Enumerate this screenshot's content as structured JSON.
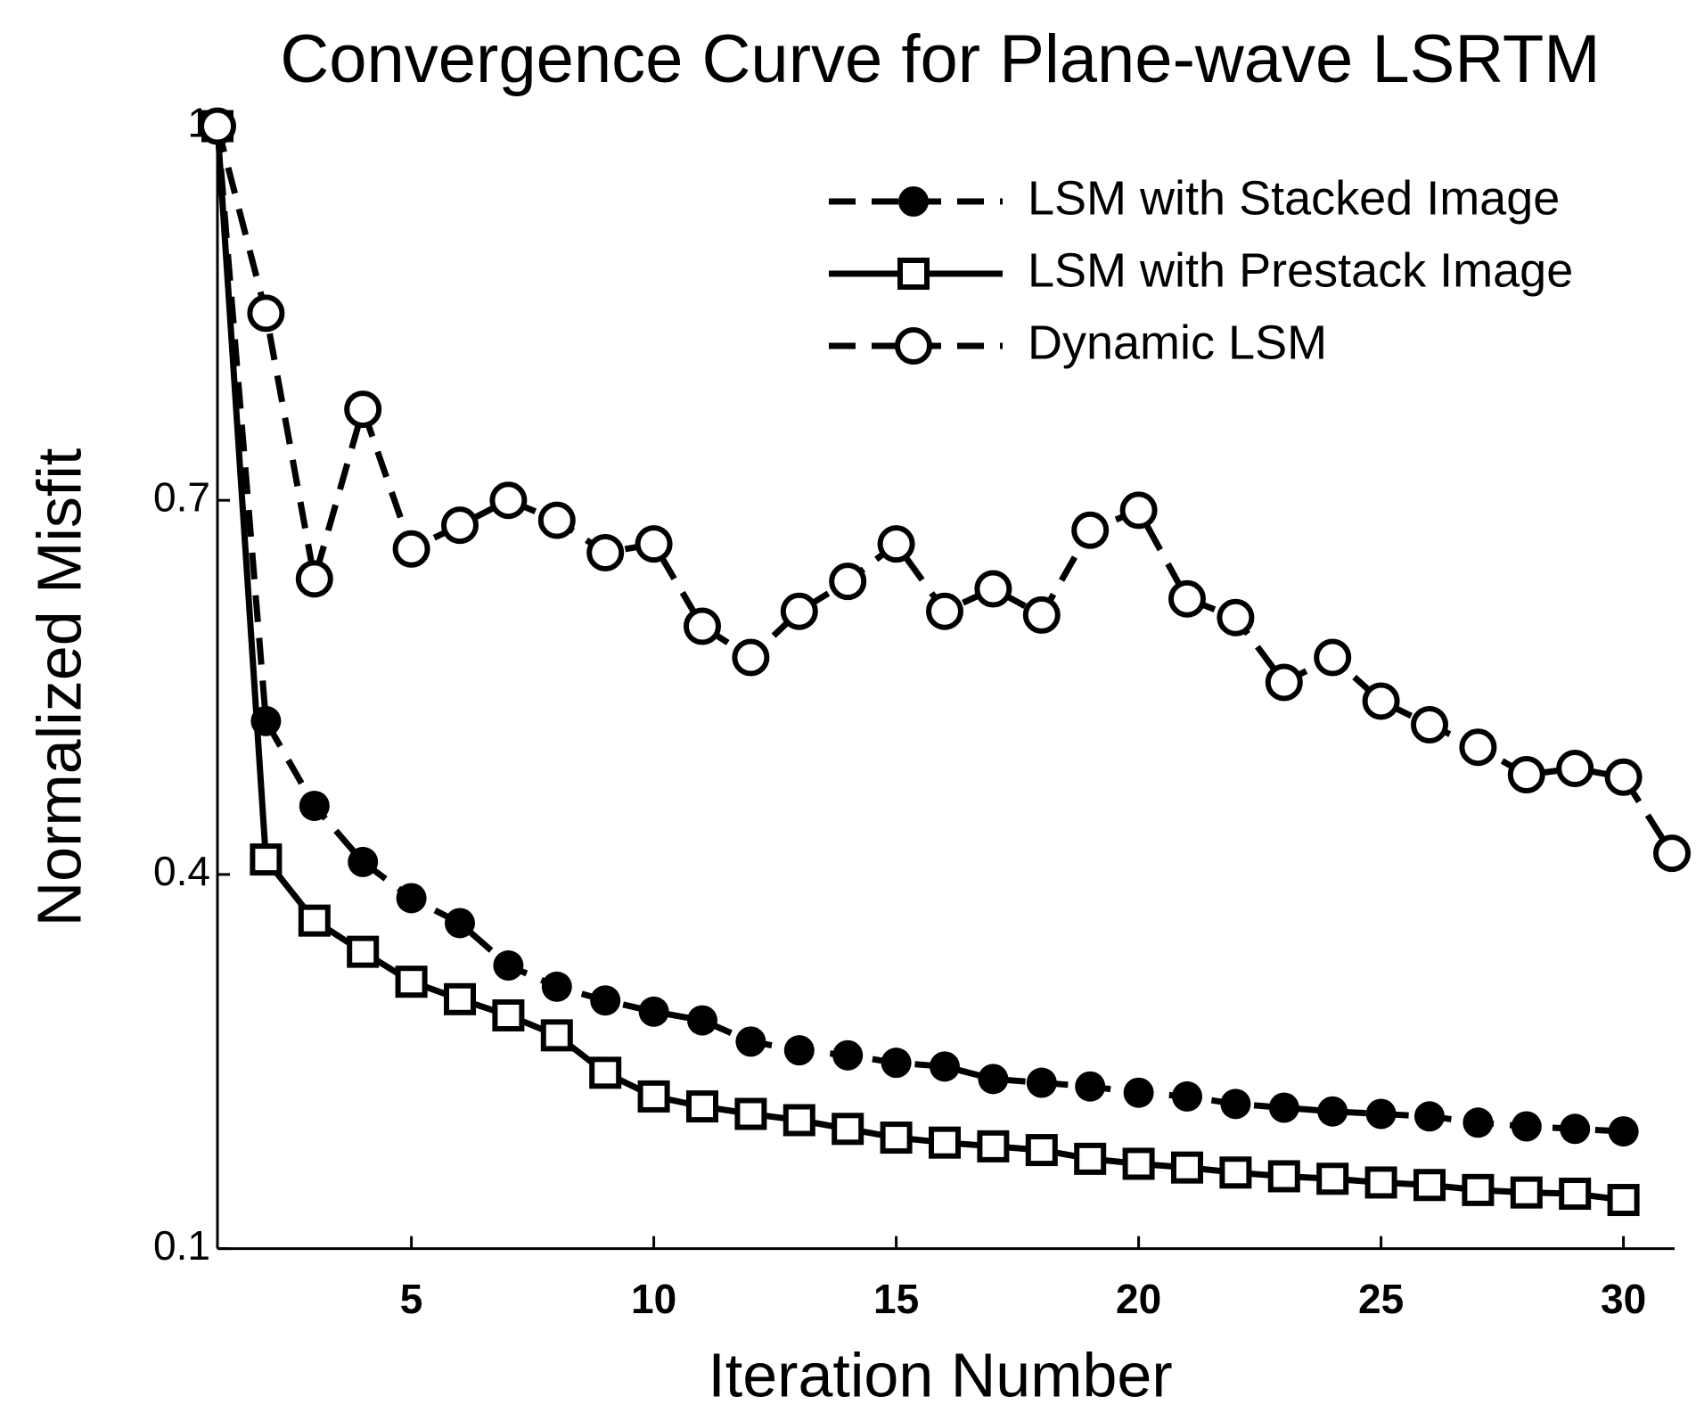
{
  "chart_data": {
    "type": "line",
    "title": "Convergence Curve for Plane-wave LSRTM",
    "xlabel": "Iteration Number",
    "ylabel": "Normalized Misfit",
    "x": [
      1,
      2,
      3,
      4,
      5,
      6,
      7,
      8,
      9,
      10,
      11,
      12,
      13,
      14,
      15,
      16,
      17,
      18,
      19,
      20,
      21,
      22,
      23,
      24,
      25,
      26,
      27,
      28,
      29,
      30,
      31
    ],
    "series": [
      {
        "name": "LSM with Stacked Image",
        "color": "#000000",
        "linestyle": "dashed",
        "marker": "filled-circle",
        "values": [
          1.0,
          0.523,
          0.455,
          0.41,
          0.381,
          0.361,
          0.327,
          0.31,
          0.299,
          0.29,
          0.283,
          0.266,
          0.259,
          0.255,
          0.249,
          0.246,
          0.236,
          0.233,
          0.23,
          0.225,
          0.222,
          0.216,
          0.213,
          0.21,
          0.208,
          0.206,
          0.201,
          0.198,
          0.196,
          0.194,
          null
        ]
      },
      {
        "name": "LSM with Prestack Image",
        "color": "#000000",
        "linestyle": "solid",
        "marker": "square",
        "values": [
          1.0,
          0.412,
          0.363,
          0.338,
          0.314,
          0.3,
          0.287,
          0.271,
          0.241,
          0.222,
          0.214,
          0.208,
          0.203,
          0.196,
          0.189,
          0.185,
          0.182,
          0.179,
          0.172,
          0.168,
          0.165,
          0.161,
          0.158,
          0.156,
          0.153,
          0.151,
          0.147,
          0.145,
          0.144,
          0.139,
          null
        ]
      },
      {
        "name": "Dynamic LSM",
        "color": "#000000",
        "linestyle": "dashed",
        "marker": "open-circle",
        "values": [
          1.0,
          0.85,
          0.637,
          0.773,
          0.661,
          0.68,
          0.7,
          0.684,
          0.658,
          0.665,
          0.599,
          0.574,
          0.611,
          0.635,
          0.665,
          0.611,
          0.629,
          0.608,
          0.676,
          0.692,
          0.621,
          0.606,
          0.554,
          0.574,
          0.539,
          0.52,
          0.502,
          0.48,
          0.485,
          0.478,
          0.417
        ]
      }
    ],
    "xlim": [
      1,
      31
    ],
    "ylim": [
      0.1,
      1.0
    ],
    "xticks": [
      5,
      10,
      15,
      20,
      25,
      30
    ],
    "yticks": [
      0.1,
      0.4,
      0.7,
      1
    ],
    "grid": false,
    "legend": "upper right"
  }
}
